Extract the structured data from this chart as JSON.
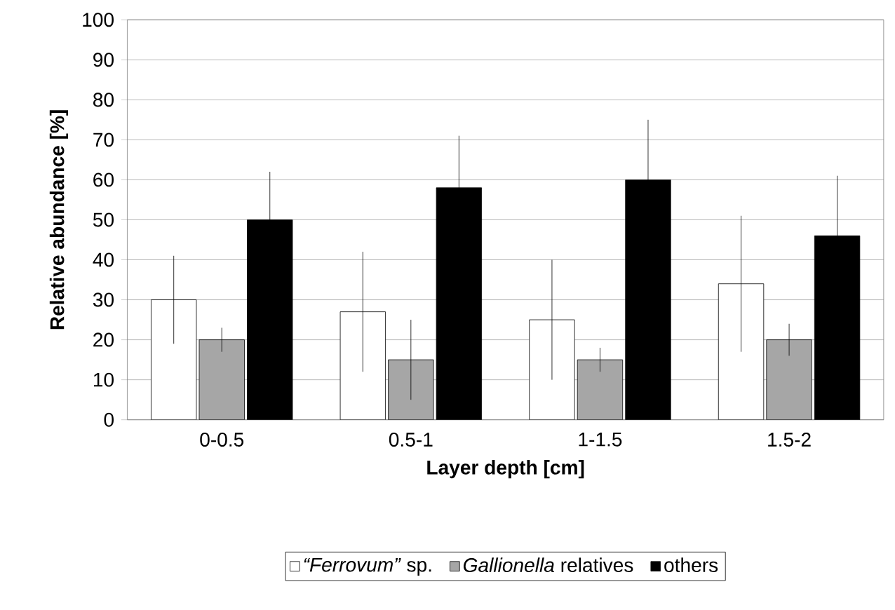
{
  "chart_data": {
    "type": "bar",
    "xlabel": "Layer depth [cm]",
    "ylabel": "Relative abundance [%]",
    "categories": [
      "0-0.5",
      "0.5-1",
      "1-1.5",
      "1.5-2"
    ],
    "series": [
      {
        "name": "*“Ferrovum”* sp.",
        "color": "#ffffff",
        "values": [
          30,
          27,
          25,
          34
        ],
        "errors": [
          11,
          15,
          15,
          17
        ]
      },
      {
        "name": "*Gallionella* relatives",
        "color": "#a6a6a6",
        "values": [
          20,
          15,
          15,
          20
        ],
        "errors": [
          3,
          10,
          3,
          4
        ]
      },
      {
        "name": "others",
        "color": "#000000",
        "values": [
          50,
          58,
          60,
          46
        ],
        "errors": [
          12,
          13,
          15,
          15
        ]
      }
    ],
    "ylim": [
      0,
      100
    ],
    "yticks": [
      0,
      10,
      20,
      30,
      40,
      50,
      60,
      70,
      80,
      90,
      100
    ],
    "grid": "y",
    "legend": "bottom"
  }
}
